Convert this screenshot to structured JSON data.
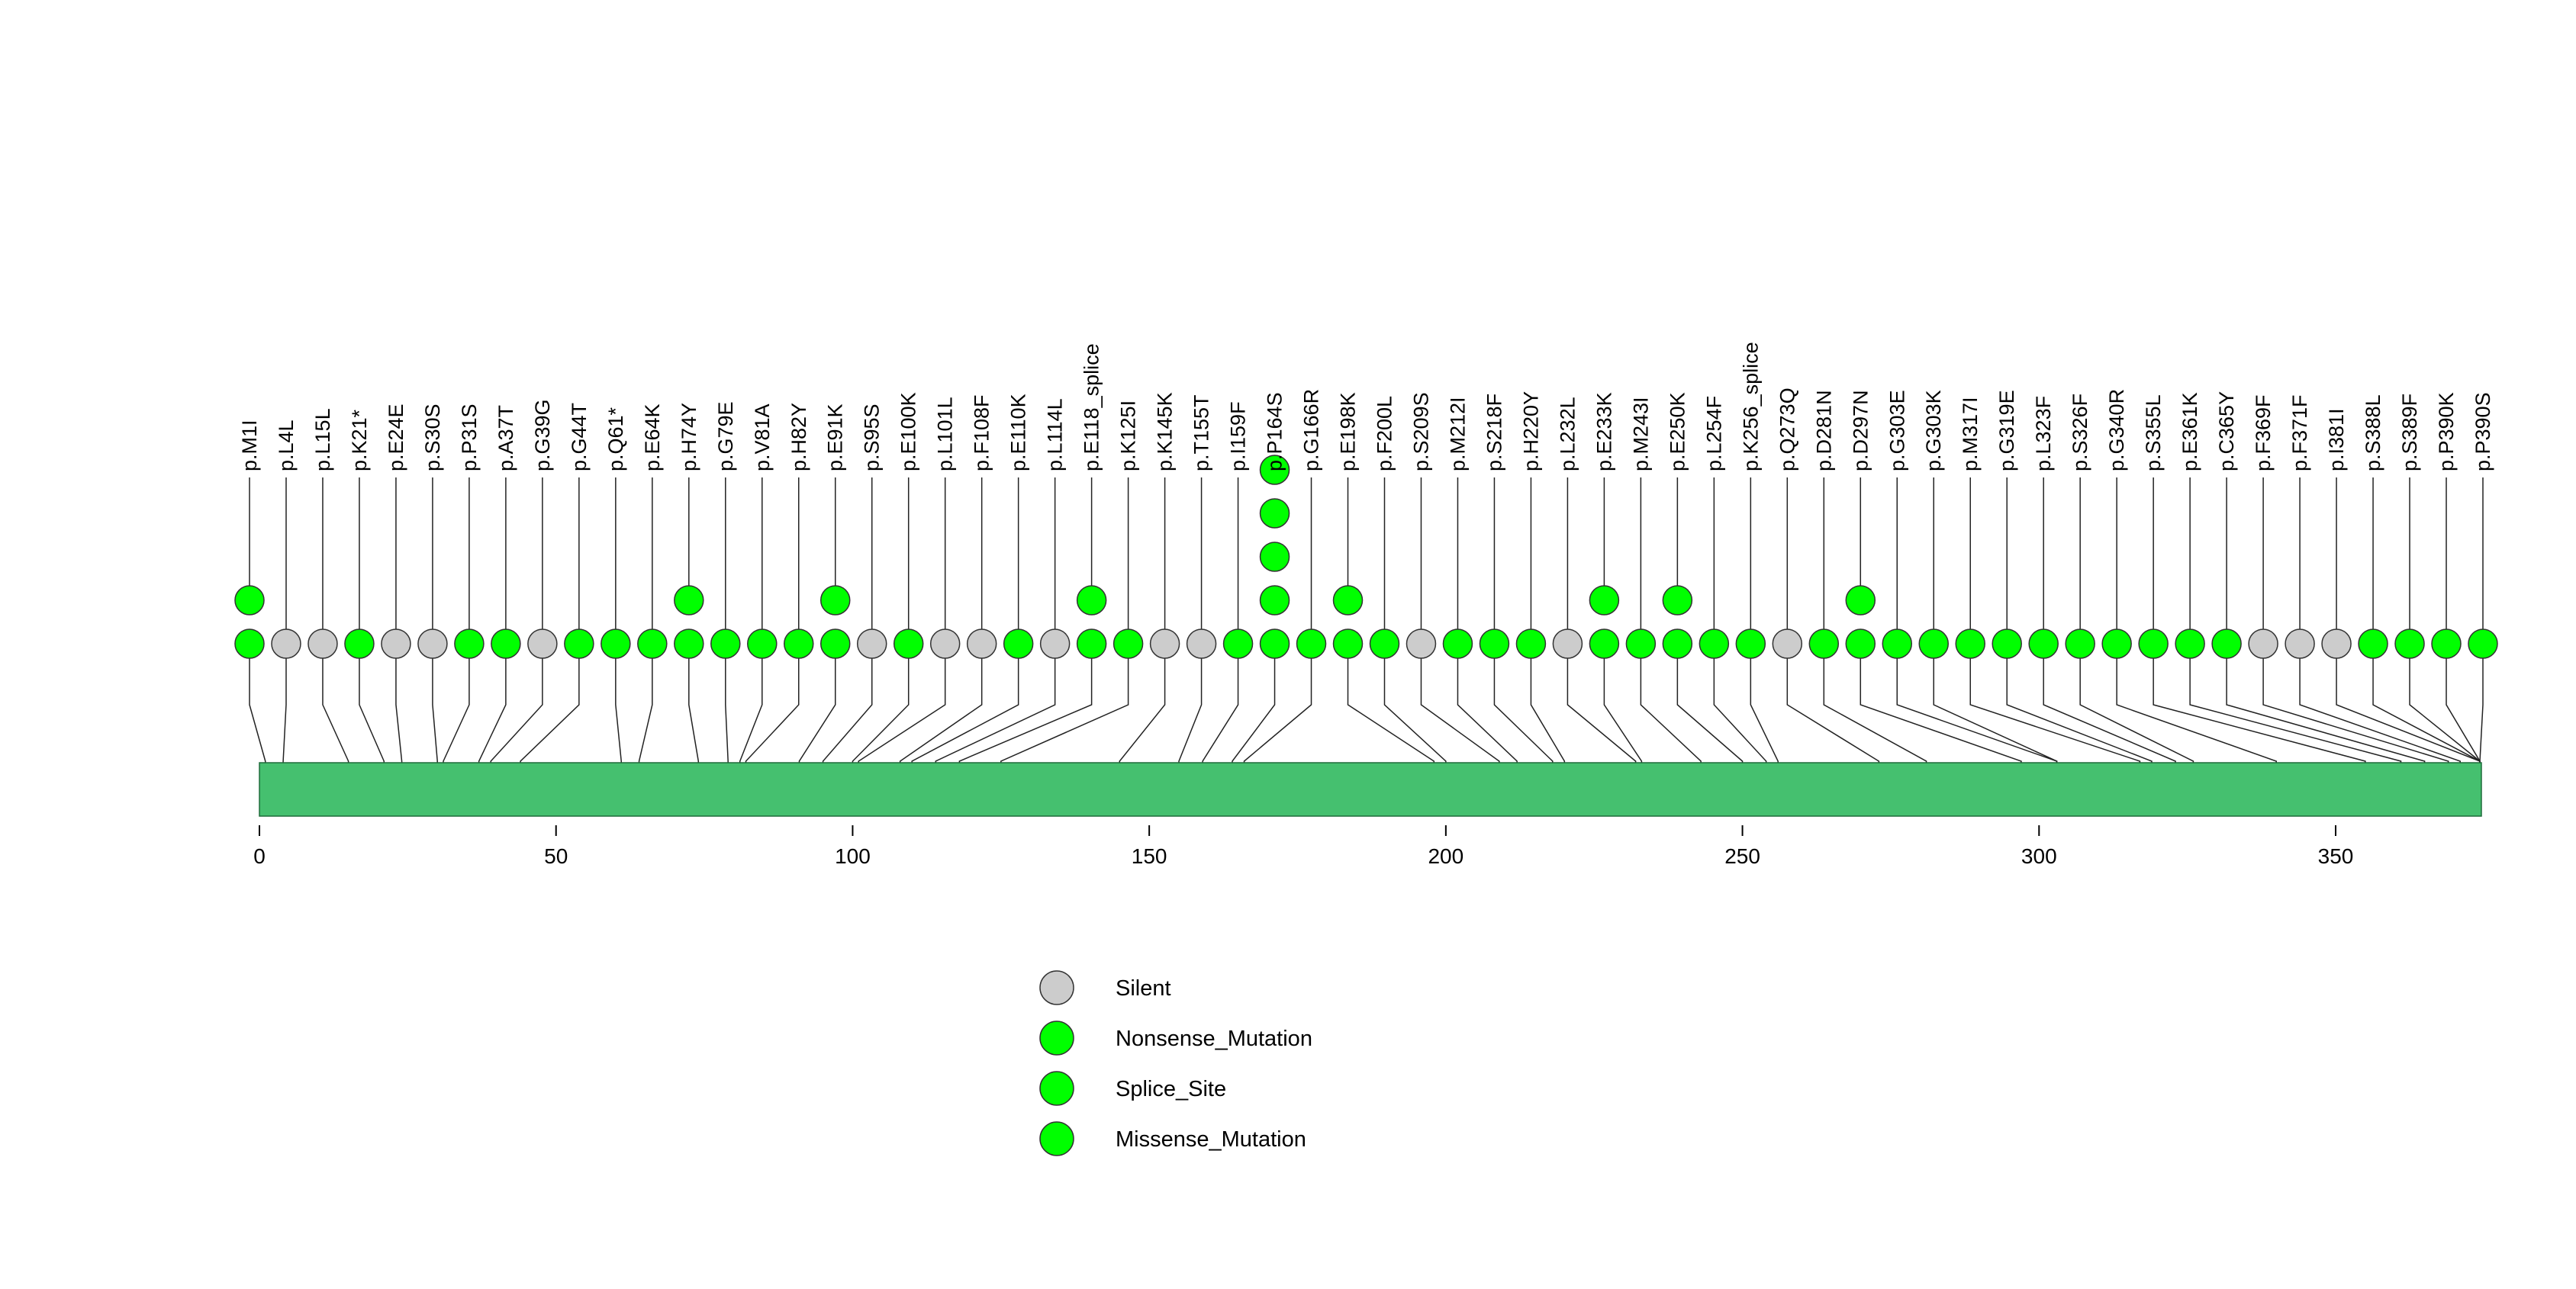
{
  "chart_data": {
    "type": "lollipop",
    "title": "",
    "xlabel": "",
    "ylabel": "",
    "protein_length": 389,
    "xlim": [
      0,
      389
    ],
    "x_ticks": [
      0,
      50,
      100,
      150,
      200,
      250,
      300,
      350
    ],
    "x_tick_labels": [
      "0",
      "50",
      "100",
      "150",
      "200",
      "250",
      "300",
      "350"
    ],
    "mutations": [
      {
        "label": "p.M1I",
        "position": 1,
        "type": "Missense_Mutation",
        "count": 2
      },
      {
        "label": "p.L4L",
        "position": 4,
        "type": "Silent",
        "count": 1
      },
      {
        "label": "p.L15L",
        "position": 15,
        "type": "Silent",
        "count": 1
      },
      {
        "label": "p.K21*",
        "position": 21,
        "type": "Nonsense_Mutation",
        "count": 1
      },
      {
        "label": "p.E24E",
        "position": 24,
        "type": "Silent",
        "count": 1
      },
      {
        "label": "p.S30S",
        "position": 30,
        "type": "Silent",
        "count": 1
      },
      {
        "label": "p.P31S",
        "position": 31,
        "type": "Missense_Mutation",
        "count": 1
      },
      {
        "label": "p.A37T",
        "position": 37,
        "type": "Missense_Mutation",
        "count": 1
      },
      {
        "label": "p.G39G",
        "position": 39,
        "type": "Silent",
        "count": 1
      },
      {
        "label": "p.G44T",
        "position": 44,
        "type": "Missense_Mutation",
        "count": 1
      },
      {
        "label": "p.Q61*",
        "position": 61,
        "type": "Nonsense_Mutation",
        "count": 1
      },
      {
        "label": "p.E64K",
        "position": 64,
        "type": "Missense_Mutation",
        "count": 1
      },
      {
        "label": "p.H74Y",
        "position": 74,
        "type": "Missense_Mutation",
        "count": 2
      },
      {
        "label": "p.G79E",
        "position": 79,
        "type": "Missense_Mutation",
        "count": 1
      },
      {
        "label": "p.V81A",
        "position": 81,
        "type": "Missense_Mutation",
        "count": 1
      },
      {
        "label": "p.H82Y",
        "position": 82,
        "type": "Missense_Mutation",
        "count": 1
      },
      {
        "label": "p.E91K",
        "position": 91,
        "type": "Missense_Mutation",
        "count": 2
      },
      {
        "label": "p.S95S",
        "position": 95,
        "type": "Silent",
        "count": 1
      },
      {
        "label": "p.E100K",
        "position": 100,
        "type": "Missense_Mutation",
        "count": 1
      },
      {
        "label": "p.L101L",
        "position": 101,
        "type": "Silent",
        "count": 1
      },
      {
        "label": "p.F108F",
        "position": 108,
        "type": "Silent",
        "count": 1
      },
      {
        "label": "p.E110K",
        "position": 110,
        "type": "Missense_Mutation",
        "count": 1
      },
      {
        "label": "p.L114L",
        "position": 114,
        "type": "Silent",
        "count": 1
      },
      {
        "label": "p.E118_splice",
        "position": 118,
        "type": "Splice_Site",
        "count": 2
      },
      {
        "label": "p.K125I",
        "position": 125,
        "type": "Missense_Mutation",
        "count": 1
      },
      {
        "label": "p.K145K",
        "position": 145,
        "type": "Silent",
        "count": 1
      },
      {
        "label": "p.T155T",
        "position": 155,
        "type": "Silent",
        "count": 1
      },
      {
        "label": "p.I159F",
        "position": 159,
        "type": "Missense_Mutation",
        "count": 1
      },
      {
        "label": "p.P164S",
        "position": 164,
        "type": "Missense_Mutation",
        "count": 5
      },
      {
        "label": "p.G166R",
        "position": 166,
        "type": "Missense_Mutation",
        "count": 1
      },
      {
        "label": "p.E198K",
        "position": 198,
        "type": "Missense_Mutation",
        "count": 2
      },
      {
        "label": "p.F200L",
        "position": 200,
        "type": "Missense_Mutation",
        "count": 1
      },
      {
        "label": "p.S209S",
        "position": 209,
        "type": "Silent",
        "count": 1
      },
      {
        "label": "p.M212I",
        "position": 212,
        "type": "Missense_Mutation",
        "count": 1
      },
      {
        "label": "p.S218F",
        "position": 218,
        "type": "Missense_Mutation",
        "count": 1
      },
      {
        "label": "p.H220Y",
        "position": 220,
        "type": "Missense_Mutation",
        "count": 1
      },
      {
        "label": "p.L232L",
        "position": 232,
        "type": "Silent",
        "count": 1
      },
      {
        "label": "p.E233K",
        "position": 233,
        "type": "Missense_Mutation",
        "count": 2
      },
      {
        "label": "p.M243I",
        "position": 243,
        "type": "Missense_Mutation",
        "count": 1
      },
      {
        "label": "p.E250K",
        "position": 250,
        "type": "Missense_Mutation",
        "count": 2
      },
      {
        "label": "p.L254F",
        "position": 254,
        "type": "Missense_Mutation",
        "count": 1
      },
      {
        "label": "p.K256_splice",
        "position": 256,
        "type": "Splice_Site",
        "count": 1
      },
      {
        "label": "p.Q273Q",
        "position": 273,
        "type": "Silent",
        "count": 1
      },
      {
        "label": "p.D281N",
        "position": 281,
        "type": "Missense_Mutation",
        "count": 1
      },
      {
        "label": "p.D297N",
        "position": 297,
        "type": "Missense_Mutation",
        "count": 2
      },
      {
        "label": "p.G303E",
        "position": 303,
        "type": "Missense_Mutation",
        "count": 1
      },
      {
        "label": "p.G303K",
        "position": 303,
        "type": "Missense_Mutation",
        "count": 1
      },
      {
        "label": "p.M317I",
        "position": 317,
        "type": "Missense_Mutation",
        "count": 1
      },
      {
        "label": "p.G319E",
        "position": 319,
        "type": "Missense_Mutation",
        "count": 1
      },
      {
        "label": "p.L323F",
        "position": 323,
        "type": "Missense_Mutation",
        "count": 1
      },
      {
        "label": "p.S326F",
        "position": 326,
        "type": "Missense_Mutation",
        "count": 1
      },
      {
        "label": "p.G340R",
        "position": 340,
        "type": "Missense_Mutation",
        "count": 1
      },
      {
        "label": "p.S355L",
        "position": 355,
        "type": "Missense_Mutation",
        "count": 1
      },
      {
        "label": "p.E361K",
        "position": 361,
        "type": "Missense_Mutation",
        "count": 1
      },
      {
        "label": "p.C365Y",
        "position": 365,
        "type": "Missense_Mutation",
        "count": 1
      },
      {
        "label": "p.F369F",
        "position": 369,
        "type": "Silent",
        "count": 1
      },
      {
        "label": "p.F371F",
        "position": 371,
        "type": "Silent",
        "count": 1
      },
      {
        "label": "p.I381I",
        "position": 381,
        "type": "Silent",
        "count": 1
      },
      {
        "label": "p.S388L",
        "position": 388,
        "type": "Missense_Mutation",
        "count": 1
      },
      {
        "label": "p.S389F",
        "position": 389,
        "type": "Missense_Mutation",
        "count": 1
      },
      {
        "label": "p.P390K",
        "position": 390,
        "type": "Missense_Mutation",
        "count": 1
      },
      {
        "label": "p.P390S",
        "position": 390,
        "type": "Missense_Mutation",
        "count": 1
      }
    ],
    "legend": [
      {
        "label": "Silent",
        "color": "#cccccc"
      },
      {
        "label": "Nonsense_Mutation",
        "color": "#00ff00"
      },
      {
        "label": "Splice_Site",
        "color": "#00ff00"
      },
      {
        "label": "Missense_Mutation",
        "color": "#00ff00"
      }
    ],
    "legend_position": "bottom-center",
    "colors": {
      "protein_bar": "#45c06f",
      "Silent": "#cccccc",
      "Nonsense_Mutation": "#00ff00",
      "Splice_Site": "#00ff00",
      "Missense_Mutation": "#00ff00"
    }
  }
}
